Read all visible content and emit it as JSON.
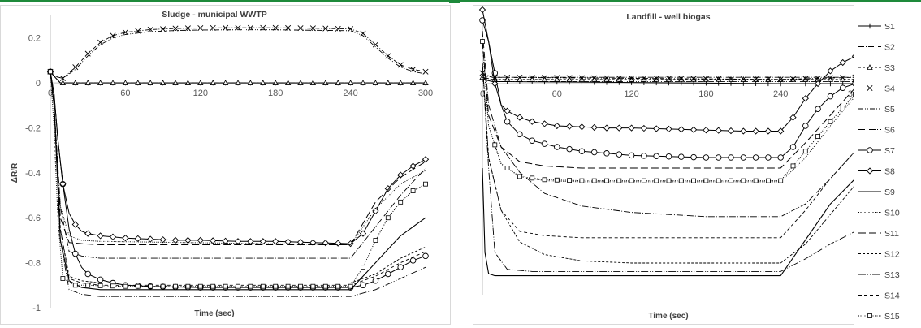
{
  "chart_data": [
    {
      "type": "line",
      "title": "Sludge - municipal  WWTP",
      "xlabel": "Time (sec)",
      "ylabel": "ΔR/R",
      "xlim": [
        0,
        300
      ],
      "ylim": [
        -1,
        0.3
      ],
      "xticks": [
        "0",
        "60",
        "120",
        "180",
        "240",
        "300"
      ],
      "yticks": [
        "0.2",
        "0",
        "-0.2",
        "-0.4",
        "-0.6",
        "-0.8",
        "-1"
      ],
      "grid": false,
      "series": [
        {
          "name": "S1",
          "x": [
            0,
            3,
            8,
            240,
            300
          ],
          "y": [
            0.05,
            0.03,
            0.0,
            0.0,
            0.0
          ]
        },
        {
          "name": "S2",
          "x": [
            0,
            3,
            8,
            240,
            300
          ],
          "y": [
            0.05,
            0.03,
            0.0,
            0.0,
            0.0
          ]
        },
        {
          "name": "S3",
          "x": [
            0,
            3,
            8,
            240,
            300
          ],
          "y": [
            0.05,
            0.03,
            0.0,
            0.0,
            0.0
          ]
        },
        {
          "name": "S4",
          "x": [
            0,
            3,
            10,
            20,
            30,
            40,
            50,
            60,
            80,
            100,
            120,
            150,
            180,
            210,
            240,
            250,
            260,
            270,
            280,
            290,
            300
          ],
          "y": [
            0.05,
            0.03,
            0.02,
            0.07,
            0.13,
            0.18,
            0.21,
            0.225,
            0.237,
            0.242,
            0.244,
            0.245,
            0.245,
            0.243,
            0.24,
            0.22,
            0.17,
            0.12,
            0.08,
            0.06,
            0.05
          ]
        },
        {
          "name": "S5",
          "x": [
            0,
            3,
            10,
            20,
            30,
            40,
            50,
            60,
            80,
            100,
            120,
            150,
            180,
            210,
            240,
            250,
            260,
            270,
            280,
            290,
            300
          ],
          "y": [
            0.05,
            0.03,
            0.02,
            0.06,
            0.12,
            0.17,
            0.2,
            0.215,
            0.228,
            0.233,
            0.235,
            0.236,
            0.236,
            0.234,
            0.232,
            0.21,
            0.16,
            0.11,
            0.07,
            0.05,
            0.04
          ]
        },
        {
          "name": "S6",
          "x": [
            0,
            3,
            8,
            15,
            25,
            40,
            240,
            260,
            280,
            300
          ],
          "y": [
            0.05,
            -0.1,
            -0.55,
            -0.75,
            -0.77,
            -0.78,
            -0.78,
            -0.64,
            -0.5,
            -0.38
          ]
        },
        {
          "name": "S7",
          "x": [
            0,
            3,
            6,
            10,
            15,
            20,
            25,
            30,
            40,
            50,
            60,
            80,
            100,
            120,
            150,
            180,
            210,
            240,
            250,
            260,
            270,
            280,
            290,
            300
          ],
          "y": [
            0.05,
            -0.05,
            -0.25,
            -0.45,
            -0.65,
            -0.76,
            -0.82,
            -0.85,
            -0.875,
            -0.89,
            -0.9,
            -0.905,
            -0.908,
            -0.91,
            -0.91,
            -0.91,
            -0.91,
            -0.91,
            -0.9,
            -0.88,
            -0.85,
            -0.82,
            -0.79,
            -0.77
          ]
        },
        {
          "name": "S8",
          "x": [
            0,
            3,
            6,
            10,
            15,
            20,
            25,
            30,
            40,
            50,
            60,
            80,
            100,
            120,
            150,
            180,
            210,
            240,
            250,
            260,
            270,
            280,
            290,
            300
          ],
          "y": [
            0.05,
            -0.05,
            -0.25,
            -0.45,
            -0.58,
            -0.63,
            -0.66,
            -0.67,
            -0.68,
            -0.685,
            -0.69,
            -0.695,
            -0.7,
            -0.7,
            -0.705,
            -0.705,
            -0.71,
            -0.715,
            -0.67,
            -0.57,
            -0.47,
            -0.41,
            -0.37,
            -0.34
          ]
        },
        {
          "name": "S9",
          "x": [
            0,
            3,
            8,
            15,
            25,
            40,
            240,
            260,
            280,
            300
          ],
          "y": [
            0.05,
            -0.1,
            -0.7,
            -0.88,
            -0.91,
            -0.92,
            -0.92,
            -0.8,
            -0.68,
            -0.6
          ]
        },
        {
          "name": "S10",
          "x": [
            0,
            3,
            8,
            15,
            25,
            40,
            240,
            260,
            280,
            300
          ],
          "y": [
            0.05,
            -0.1,
            -0.55,
            -0.68,
            -0.7,
            -0.705,
            -0.72,
            -0.56,
            -0.45,
            -0.39
          ]
        },
        {
          "name": "S11",
          "x": [
            0,
            3,
            8,
            15,
            25,
            40,
            240,
            260,
            280,
            300
          ],
          "y": [
            0.05,
            -0.1,
            -0.6,
            -0.71,
            -0.715,
            -0.72,
            -0.72,
            -0.53,
            -0.42,
            -0.35
          ]
        },
        {
          "name": "S12",
          "x": [
            0,
            3,
            8,
            15,
            25,
            40,
            240,
            260,
            280,
            300
          ],
          "y": [
            0.05,
            -0.1,
            -0.65,
            -0.86,
            -0.88,
            -0.89,
            -0.89,
            -0.85,
            -0.78,
            -0.73
          ]
        },
        {
          "name": "S13",
          "x": [
            0,
            3,
            8,
            15,
            25,
            40,
            240,
            260,
            280,
            300
          ],
          "y": [
            0.05,
            -0.1,
            -0.7,
            -0.92,
            -0.94,
            -0.95,
            -0.95,
            -0.92,
            -0.87,
            -0.82
          ]
        },
        {
          "name": "S14",
          "x": [
            0,
            3,
            8,
            15,
            25,
            40,
            240,
            260,
            280,
            300
          ],
          "y": [
            0.05,
            -0.1,
            -0.65,
            -0.87,
            -0.89,
            -0.9,
            -0.9,
            -0.86,
            -0.8,
            -0.75
          ]
        },
        {
          "name": "S15",
          "x": [
            0,
            3,
            6,
            10,
            20,
            30,
            40,
            60,
            80,
            100,
            120,
            150,
            180,
            210,
            240,
            250,
            260,
            270,
            280,
            290,
            300
          ],
          "y": [
            0.05,
            -0.2,
            -0.6,
            -0.87,
            -0.9,
            -0.9,
            -0.902,
            -0.905,
            -0.905,
            -0.905,
            -0.905,
            -0.905,
            -0.905,
            -0.905,
            -0.905,
            -0.82,
            -0.7,
            -0.6,
            -0.53,
            -0.48,
            -0.45
          ]
        }
      ]
    },
    {
      "type": "line",
      "title": "Landfill  - well biogas",
      "xlabel": "Time (sec)",
      "ylabel": "",
      "xlim": [
        0,
        300
      ],
      "ylim": [
        -1,
        0.3
      ],
      "xticks": [
        "0",
        "60",
        "120",
        "180",
        "240",
        "300"
      ],
      "yticks": [],
      "grid": false,
      "series": [
        {
          "name": "S1",
          "x": [
            0,
            8,
            240,
            300
          ],
          "y": [
            0.02,
            0.01,
            0.0,
            0.0
          ]
        },
        {
          "name": "S2",
          "x": [
            0,
            8,
            240,
            300
          ],
          "y": [
            0.04,
            0.03,
            0.03,
            0.03
          ]
        },
        {
          "name": "S3",
          "x": [
            0,
            8,
            240,
            300
          ],
          "y": [
            0.03,
            0.02,
            0.02,
            0.02
          ]
        },
        {
          "name": "S4",
          "x": [
            0,
            8,
            240,
            300
          ],
          "y": [
            0.05,
            0.03,
            0.02,
            0.03
          ]
        },
        {
          "name": "S5",
          "x": [
            0,
            8,
            240,
            300
          ],
          "y": [
            0.03,
            0.01,
            0.01,
            0.01
          ]
        },
        {
          "name": "S6",
          "x": [
            0,
            5,
            15,
            30,
            50,
            80,
            120,
            180,
            240,
            260,
            280,
            300
          ],
          "y": [
            0.25,
            -0.1,
            -0.3,
            -0.42,
            -0.52,
            -0.58,
            -0.61,
            -0.63,
            -0.63,
            -0.57,
            -0.45,
            -0.32
          ]
        },
        {
          "name": "S7",
          "x": [
            0,
            5,
            10,
            15,
            20,
            30,
            40,
            60,
            80,
            100,
            120,
            150,
            180,
            210,
            240,
            250,
            260,
            270,
            280,
            290,
            300
          ],
          "y": [
            0.3,
            0.2,
            0.05,
            -0.1,
            -0.18,
            -0.24,
            -0.27,
            -0.3,
            -0.32,
            -0.33,
            -0.34,
            -0.345,
            -0.35,
            -0.35,
            -0.35,
            -0.3,
            -0.2,
            -0.12,
            -0.06,
            -0.02,
            0.0
          ]
        },
        {
          "name": "S8",
          "x": [
            0,
            5,
            10,
            15,
            20,
            30,
            40,
            60,
            80,
            100,
            120,
            150,
            180,
            210,
            240,
            250,
            260,
            270,
            280,
            290,
            300
          ],
          "y": [
            0.35,
            0.2,
            0.0,
            -0.1,
            -0.13,
            -0.16,
            -0.18,
            -0.2,
            -0.205,
            -0.21,
            -0.21,
            -0.215,
            -0.22,
            -0.225,
            -0.225,
            -0.16,
            -0.07,
            0.0,
            0.06,
            0.1,
            0.13
          ]
        },
        {
          "name": "S9",
          "x": [
            0,
            2,
            5,
            10,
            240,
            260,
            280,
            300
          ],
          "y": [
            -0.4,
            -0.8,
            -0.9,
            -0.91,
            -0.91,
            -0.74,
            -0.57,
            -0.45
          ]
        },
        {
          "name": "S10",
          "x": [
            0,
            5,
            15,
            30,
            50,
            80,
            240,
            260,
            280,
            300
          ],
          "y": [
            0.2,
            -0.2,
            -0.38,
            -0.44,
            -0.46,
            -0.465,
            -0.465,
            -0.35,
            -0.2,
            -0.06
          ]
        },
        {
          "name": "S11",
          "x": [
            0,
            5,
            15,
            30,
            50,
            80,
            240,
            260,
            280,
            300
          ],
          "y": [
            0.2,
            -0.15,
            -0.3,
            -0.37,
            -0.39,
            -0.4,
            -0.4,
            -0.28,
            -0.15,
            -0.02
          ]
        },
        {
          "name": "S12",
          "x": [
            0,
            5,
            15,
            30,
            50,
            80,
            120,
            240,
            260,
            280,
            300
          ],
          "y": [
            0.1,
            -0.35,
            -0.6,
            -0.75,
            -0.81,
            -0.84,
            -0.85,
            -0.85,
            -0.76,
            -0.62,
            -0.48
          ]
        },
        {
          "name": "S13",
          "x": [
            0,
            5,
            10,
            20,
            40,
            240,
            260,
            280,
            300
          ],
          "y": [
            0.1,
            -0.4,
            -0.8,
            -0.88,
            -0.89,
            -0.89,
            -0.83,
            -0.76,
            -0.7
          ]
        },
        {
          "name": "S14",
          "x": [
            0,
            5,
            15,
            30,
            50,
            80,
            240,
            260,
            280,
            300
          ],
          "y": [
            0.1,
            -0.35,
            -0.6,
            -0.7,
            -0.72,
            -0.73,
            -0.73,
            -0.6,
            -0.45,
            -0.32
          ]
        },
        {
          "name": "S15",
          "x": [
            0,
            5,
            15,
            30,
            50,
            80,
            240,
            260,
            280,
            300
          ],
          "y": [
            0.2,
            -0.2,
            -0.38,
            -0.44,
            -0.455,
            -0.46,
            -0.46,
            -0.32,
            -0.18,
            -0.05
          ]
        }
      ]
    }
  ],
  "legend": {
    "items": [
      "S1",
      "S2",
      "S3",
      "S4",
      "S5",
      "S6",
      "S7",
      "S8",
      "S9",
      "S10",
      "S11",
      "S12",
      "S13",
      "S14",
      "S15"
    ]
  },
  "colors": {
    "line": "#000000",
    "axis": "#bfbfbf",
    "text": "#595959",
    "topbar": "#1e8a3b"
  }
}
